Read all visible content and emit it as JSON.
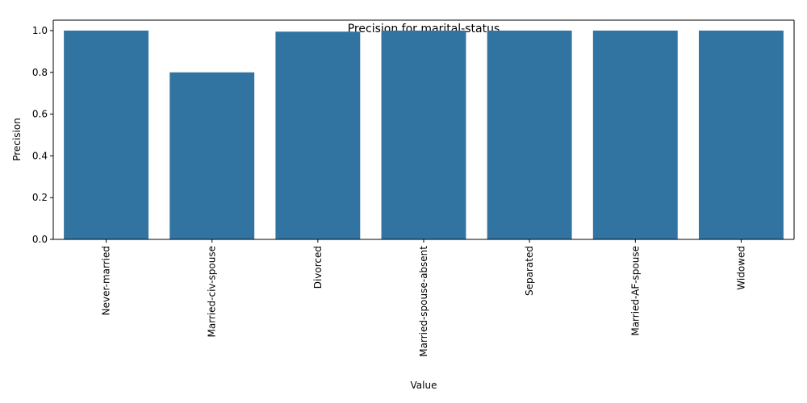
{
  "chart_data": {
    "type": "bar",
    "title": "Precision for marital-status",
    "xlabel": "Value",
    "ylabel": "Precision",
    "categories": [
      "Never-married",
      "Married-civ-spouse",
      "Divorced",
      "Married-spouse-absent",
      "Separated",
      "Married-AF-spouse",
      "Widowed"
    ],
    "values": [
      1.0,
      0.8,
      0.995,
      1.0,
      1.0,
      1.0,
      1.0
    ],
    "ylim": [
      0,
      1.05
    ],
    "yticks": [
      "0.0",
      "0.2",
      "0.4",
      "0.6",
      "0.8",
      "1.0"
    ],
    "grid": false,
    "bar_color": "#3274a1"
  }
}
